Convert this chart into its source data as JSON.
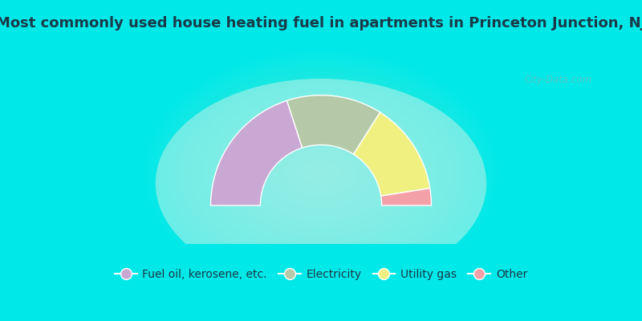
{
  "title": "Most commonly used house heating fuel in apartments in Princeton Junction, NJ",
  "title_color": "#1a3a4a",
  "title_fontsize": 13,
  "background_color": "#00e8e8",
  "segments": [
    {
      "label": "Fuel oil, kerosene, etc.",
      "value": 40,
      "color": "#c9a8d4"
    },
    {
      "label": "Electricity",
      "value": 28,
      "color": "#b5c9a8"
    },
    {
      "label": "Utility gas",
      "value": 27,
      "color": "#f0f080"
    },
    {
      "label": "Other",
      "value": 5,
      "color": "#f4a0a8"
    }
  ],
  "legend_fontsize": 10,
  "legend_text_color": "#1a3a4a",
  "watermark": "City-Data.com",
  "inner_r": 0.55,
  "outer_r": 1.0
}
